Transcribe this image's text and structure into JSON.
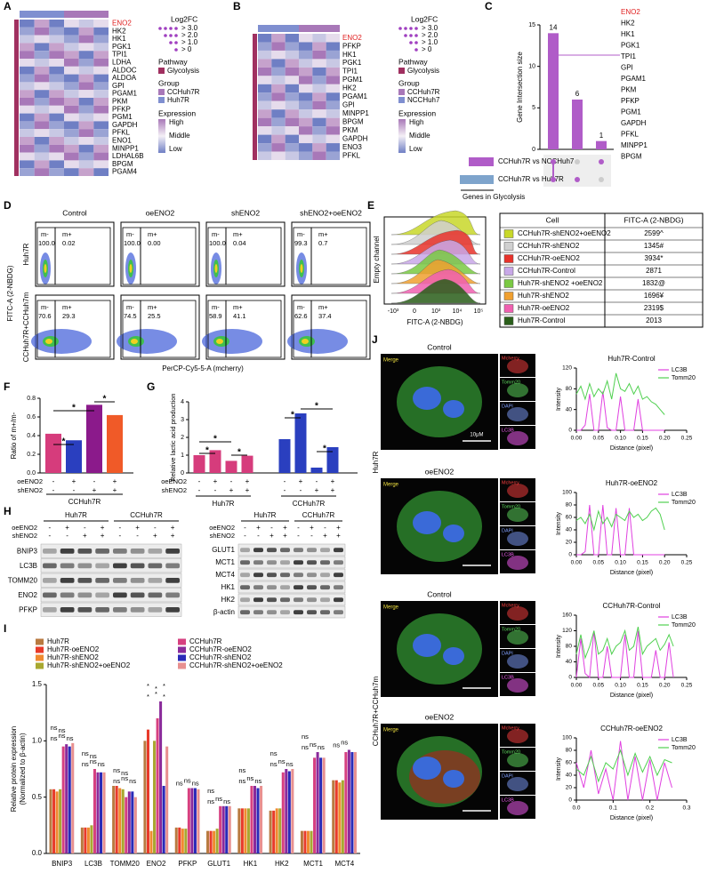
{
  "panels": {
    "A": {
      "label": "A",
      "genes": [
        "ENO2",
        "HK2",
        "HK1",
        "PGK1",
        "TPI1",
        "LDHA",
        "ALDOC",
        "ALDOA",
        "GPI",
        "PGAM1",
        "PKM",
        "PFKP",
        "PGM1",
        "GAPDH",
        "PFKL",
        "ENO1",
        "MINPP1",
        "LDHAL6B",
        "BPGM",
        "PGAM4"
      ],
      "legend": {
        "fc_title": "Log2FC",
        "fc": [
          "> 3.0",
          "> 2.0",
          "> 1.0",
          "> 0"
        ],
        "pathway_title": "Pathway",
        "pathway": "Glycolysis",
        "group_title": "Group",
        "groups": [
          "CCHuh7R",
          "Huh7R"
        ],
        "expr_title": "Expression",
        "expr": [
          "High",
          "Middle",
          "Low"
        ]
      }
    },
    "B": {
      "label": "B",
      "genes": [
        "ENO2",
        "PFKP",
        "HK1",
        "PGK1",
        "TPI1",
        "PGM1",
        "HK2",
        "PGAM1",
        "GPI",
        "MINPP1",
        "BPGM",
        "PKM",
        "GAPDH",
        "ENO3",
        "PFKL"
      ],
      "legend": {
        "fc_title": "Log2FC",
        "fc": [
          "> 3.0",
          "> 2.0",
          "> 1.0",
          "> 0"
        ],
        "pathway_title": "Pathway",
        "pathway": "Glycolysis",
        "group_title": "Group",
        "groups": [
          "CCHuh7R",
          "NCCHuh7"
        ],
        "expr_title": "Expression",
        "expr": [
          "High",
          "Middle",
          "Low"
        ]
      }
    },
    "D": {
      "label": "D",
      "columns": [
        "Control",
        "oeENO2",
        "shENO2",
        "shENO2+oeENO2"
      ],
      "rows": [
        "Huh7R",
        "CCHuh7R+CCHuh7m"
      ],
      "ylabel": "FITC-A (2-NBDG)",
      "xlabel": "PerCP-Cy5-5-A (mcherry)",
      "gates": [
        "m-",
        "m+"
      ],
      "percent": [
        [
          [
            "100.0",
            "0.02"
          ],
          [
            "100.0",
            "0.00"
          ],
          [
            "100.0",
            "0.04"
          ],
          [
            "99.3",
            "0.7"
          ]
        ],
        [
          [
            "70.6",
            "29.3"
          ],
          [
            "74.5",
            "25.5"
          ],
          [
            "58.9",
            "41.1"
          ],
          [
            "62.6",
            "37.4"
          ]
        ]
      ]
    },
    "E": {
      "label": "E",
      "ylabel": "Empty channel",
      "xlabel": "FITC-A (2-NBDG)",
      "xticks": [
        "-10³",
        "0",
        "10³",
        "10⁴",
        "10⁵"
      ],
      "table": {
        "header": [
          "Cell",
          "FITC-A (2-NBDG)"
        ],
        "rows": [
          [
            "CCHuh7R-shENO2+oeENO2",
            "2599^"
          ],
          [
            "CCHuh7R-shENO2",
            "1345#"
          ],
          [
            "CCHuh7R-oeENO2",
            "3934*"
          ],
          [
            "CCHuh7R-Control",
            "2871"
          ],
          [
            "Huh7R-shENO2 +oeENO2",
            "1832@"
          ],
          [
            "Huh7R-shENO2",
            "1696¥"
          ],
          [
            "Huh7R-oeENO2",
            "2319$"
          ],
          [
            "Huh7R-Control",
            "2013"
          ]
        ],
        "colors": [
          "#c8d82a",
          "#d0d0d0",
          "#e8322a",
          "#c8a8e8",
          "#7ac943",
          "#f0a030",
          "#f060b0",
          "#2a5e1a"
        ]
      }
    },
    "H": {
      "label": "H",
      "groups": [
        "Huh7R",
        "CCHuh7R"
      ],
      "rows": [
        "oeENO2",
        "shENO2"
      ],
      "signs": [
        [
          "-",
          "+",
          "-",
          "+",
          "-",
          "+",
          "-",
          "+"
        ],
        [
          "-",
          "-",
          "+",
          "+",
          "-",
          "-",
          "+",
          "+"
        ]
      ],
      "left": [
        "BNIP3",
        "LC3B",
        "TOMM20",
        "ENO2",
        "PFKP"
      ],
      "right": [
        "GLUT1",
        "MCT1",
        "MCT4",
        "HK1",
        "HK2",
        "β-actin"
      ]
    },
    "J": {
      "label": "J",
      "columns": [
        "Control",
        "oeENO2",
        "Control",
        "oeENO2"
      ],
      "rows": [
        "Huh7R",
        "CCHuh7R+CCHuh7m"
      ],
      "channels": [
        "Merge",
        "Mcherry",
        "Tomm20",
        "DAPI",
        "LC3B"
      ],
      "scale": "10μM"
    }
  },
  "chart_data": [
    {
      "type": "bar",
      "label": "C",
      "ylabel": "Gene Intersection size",
      "values": [
        14,
        6,
        1
      ],
      "color": "#b05cc8",
      "ylim": [
        0,
        15
      ],
      "yticks": [
        0,
        5,
        10,
        15
      ],
      "sets": [
        "CCHuh7R vs NCCHuh7",
        "CCHuh7R vs Huh7R"
      ],
      "set_colors": [
        "#b05cc8",
        "#7ea4cc"
      ],
      "set_axis": "Genes in Glycolysis",
      "genes": [
        "ENO2",
        "HK2",
        "HK1",
        "PGK1",
        "TPI1",
        "GPI",
        "PGAM1",
        "PKM",
        "PFKP",
        "PGM1",
        "GAPDH",
        "PFKL",
        "MINPP1",
        "BPGM"
      ]
    },
    {
      "type": "bar",
      "label": "F",
      "ylabel": "Ratio of m+/m-",
      "values": [
        0.42,
        0.35,
        0.73,
        0.62
      ],
      "colors": [
        "#d63c7c",
        "#2a3fbf",
        "#8b1a8b",
        "#f05a28"
      ],
      "ylim": [
        0,
        0.8
      ],
      "yticks": [
        {
          "value": 0,
          "label": "0.0"
        },
        0.2,
        0.4,
        0.6,
        0.8
      ],
      "rows": [
        {
          "name": "oeENO2",
          "signs": [
            "-",
            "+",
            "-",
            "+"
          ]
        },
        {
          "name": "shENO2",
          "signs": [
            "-",
            "-",
            "+",
            "+"
          ]
        }
      ],
      "group": "CCHuh7R",
      "annotations": [
        "*",
        "*",
        "*"
      ]
    },
    {
      "type": "bar",
      "label": "G",
      "ylabel": "Relative lactic acid production",
      "groups": [
        {
          "name": "Huh7R",
          "color": "#d63c7c",
          "values": [
            1.0,
            1.28,
            0.68,
            0.97
          ]
        },
        {
          "name": "CCHuh7R",
          "color": "#2a3fbf",
          "values": [
            1.9,
            3.35,
            0.3,
            1.45
          ]
        }
      ],
      "ylim": [
        0,
        4
      ],
      "yticks": [
        0,
        1,
        2,
        3,
        4
      ],
      "rows": [
        {
          "name": "oeENO2",
          "signs": [
            "-",
            "+",
            "-",
            "+",
            "-",
            "+",
            "-",
            "+"
          ]
        },
        {
          "name": "shENO2",
          "signs": [
            "-",
            "-",
            "+",
            "+",
            "-",
            "-",
            "+",
            "+"
          ]
        }
      ],
      "annotations": [
        "*",
        "*",
        "*",
        "*",
        "*",
        "*"
      ]
    },
    {
      "type": "bar",
      "label": "I",
      "ylabel": [
        "Relative protein expression",
        "(Normalized to β-actin)"
      ],
      "categories": [
        "BNIP3",
        "LC3B",
        "TOMM20",
        "ENO2",
        "PFKP",
        "GLUT1",
        "HK1",
        "HK2",
        "MCT1",
        "MCT4"
      ],
      "ylim": [
        0,
        1.5
      ],
      "yticks": [
        {
          "value": 0,
          "label": "0.0"
        },
        0.5,
        {
          "value": 1,
          "label": "1.0"
        },
        1.5
      ],
      "series": [
        {
          "name": "Huh7R",
          "color": "#b87a40",
          "values": [
            0.57,
            0.23,
            0.6,
            1.0,
            0.23,
            0.2,
            0.4,
            0.38,
            0.2,
            0.65
          ]
        },
        {
          "name": "Huh7R-oeENO2",
          "color": "#e83a2a",
          "values": [
            0.57,
            0.23,
            0.6,
            1.1,
            0.23,
            0.2,
            0.4,
            0.38,
            0.2,
            0.65
          ]
        },
        {
          "name": "Huh7R-shENO2",
          "color": "#f08a30",
          "values": [
            0.55,
            0.23,
            0.58,
            0.2,
            0.22,
            0.2,
            0.4,
            0.4,
            0.2,
            0.63
          ]
        },
        {
          "name": "Huh7R-shENO2+oeENO2",
          "color": "#a8a830",
          "values": [
            0.57,
            0.25,
            0.57,
            1.0,
            0.22,
            0.22,
            0.4,
            0.4,
            0.2,
            0.65
          ]
        },
        {
          "name": "CCHuh7R",
          "color": "#d64080",
          "values": [
            0.95,
            0.75,
            0.5,
            1.2,
            0.58,
            0.42,
            0.6,
            0.72,
            0.85,
            0.9
          ]
        },
        {
          "name": "CCHuh7R-oeENO2",
          "color": "#8a2a9a",
          "values": [
            0.97,
            0.72,
            0.55,
            1.35,
            0.58,
            0.42,
            0.6,
            0.75,
            0.9,
            0.92
          ]
        },
        {
          "name": "CCHuh7R-shENO2",
          "color": "#2a2ab8",
          "values": [
            0.95,
            0.72,
            0.55,
            0.6,
            0.58,
            0.42,
            0.58,
            0.73,
            0.85,
            0.9
          ]
        },
        {
          "name": "CCHuh7R-shENO2+oeENO2",
          "color": "#e89090",
          "values": [
            0.98,
            0.72,
            0.5,
            0.95,
            0.57,
            0.42,
            0.6,
            0.75,
            0.85,
            0.9
          ]
        }
      ],
      "marks": [
        [
          "ns",
          "ns",
          "ns",
          "ns",
          "ns"
        ],
        [
          "ns",
          "ns",
          "ns",
          "ns",
          "ns"
        ],
        [
          "ns",
          "ns",
          "ns",
          "ns",
          "ns"
        ],
        [
          "*",
          "*",
          "*",
          "*",
          "*",
          "*"
        ],
        [
          "ns",
          "ns",
          "ns"
        ],
        [
          "ns",
          "ns",
          "ns",
          "ns"
        ],
        [
          "ns",
          "ns",
          "ns",
          "ns"
        ],
        [
          "ns",
          "ns",
          "ns",
          "ns"
        ],
        [
          "ns",
          "ns",
          "ns",
          "ns"
        ],
        [
          "ns",
          "ns"
        ]
      ]
    },
    {
      "type": "line",
      "title": "Huh7R-Control",
      "xlabel": "Distance (pixel)",
      "ylabel": "Intensity",
      "x": [
        0,
        0.01,
        0.02,
        0.03,
        0.04,
        0.05,
        0.06,
        0.07,
        0.08,
        0.09,
        0.1,
        0.11,
        0.12,
        0.13,
        0.14,
        0.15,
        0.16,
        0.17,
        0.18,
        0.19,
        0.2
      ],
      "xlim": [
        0,
        0.25
      ],
      "xticks": [
        {
          "value": 0,
          "label": "0.00"
        },
        0.05,
        {
          "value": 0.1,
          "label": "0.10"
        },
        0.15,
        {
          "value": 0.2,
          "label": "0.20"
        },
        0.25
      ],
      "ylim": [
        0,
        120
      ],
      "yticks": [
        0,
        40,
        80,
        120
      ],
      "series": [
        {
          "name": "LC3B",
          "color": "#e040e0",
          "values": [
            0,
            0,
            10,
            70,
            0,
            0,
            75,
            5,
            0,
            0,
            65,
            0,
            0,
            0,
            60,
            0,
            0,
            0,
            0,
            0,
            0
          ]
        },
        {
          "name": "Tomm20",
          "color": "#50d050",
          "values": [
            70,
            85,
            60,
            90,
            65,
            80,
            70,
            95,
            60,
            110,
            80,
            75,
            90,
            70,
            85,
            60,
            65,
            55,
            50,
            40,
            30
          ]
        }
      ]
    },
    {
      "type": "line",
      "title": "Huh7R-oeENO2",
      "xlabel": "Distance (pixel)",
      "ylabel": "Intensity",
      "x": [
        0,
        0.01,
        0.02,
        0.03,
        0.04,
        0.05,
        0.06,
        0.07,
        0.08,
        0.09,
        0.1,
        0.11,
        0.12,
        0.13,
        0.14,
        0.15,
        0.16,
        0.17,
        0.18,
        0.19,
        0.2
      ],
      "xlim": [
        0,
        0.25
      ],
      "xticks": [
        {
          "value": 0,
          "label": "0.00"
        },
        0.05,
        {
          "value": 0.1,
          "label": "0.10"
        },
        0.15,
        {
          "value": 0.2,
          "label": "0.20"
        },
        0.25
      ],
      "ylim": [
        0,
        100
      ],
      "yticks": [
        0,
        20,
        40,
        60,
        80,
        100
      ],
      "series": [
        {
          "name": "LC3B",
          "color": "#e040e0",
          "values": [
            0,
            0,
            5,
            80,
            0,
            0,
            80,
            0,
            0,
            75,
            0,
            0,
            75,
            0,
            0,
            0,
            0,
            0,
            0,
            0,
            0
          ]
        },
        {
          "name": "Tomm20",
          "color": "#50d050",
          "values": [
            55,
            60,
            50,
            65,
            40,
            70,
            50,
            60,
            45,
            65,
            60,
            55,
            70,
            60,
            65,
            55,
            60,
            70,
            75,
            65,
            40
          ]
        }
      ]
    },
    {
      "type": "line",
      "title": "CCHuh7R-Control",
      "xlabel": "Distance (pixel)",
      "ylabel": "Intensity",
      "x": [
        0,
        0.01,
        0.02,
        0.03,
        0.04,
        0.05,
        0.06,
        0.07,
        0.08,
        0.09,
        0.1,
        0.11,
        0.12,
        0.13,
        0.14,
        0.15,
        0.16,
        0.17,
        0.18,
        0.19,
        0.2,
        0.21,
        0.22
      ],
      "xlim": [
        0,
        0.25
      ],
      "xticks": [
        {
          "value": 0,
          "label": "0.00"
        },
        0.05,
        {
          "value": 0.1,
          "label": "0.10"
        },
        0.15,
        {
          "value": 0.2,
          "label": "0.20"
        },
        0.25
      ],
      "ylim": [
        0,
        160
      ],
      "yticks": [
        0,
        40,
        80,
        120,
        160
      ],
      "series": [
        {
          "name": "LC3B",
          "color": "#e040e0",
          "values": [
            0,
            100,
            10,
            0,
            120,
            0,
            0,
            80,
            0,
            0,
            0,
            110,
            0,
            0,
            120,
            0,
            0,
            0,
            70,
            0,
            0,
            90,
            0
          ]
        },
        {
          "name": "Tomm20",
          "color": "#50d050",
          "values": [
            60,
            110,
            50,
            80,
            120,
            60,
            70,
            100,
            60,
            80,
            90,
            120,
            70,
            80,
            130,
            60,
            80,
            90,
            100,
            70,
            85,
            110,
            80
          ]
        }
      ]
    },
    {
      "type": "line",
      "title": "CCHuh7R-oeENO2",
      "xlabel": "Distance (pixel)",
      "ylabel": "Intensity",
      "x": [
        0,
        0.02,
        0.04,
        0.06,
        0.08,
        0.1,
        0.12,
        0.14,
        0.16,
        0.18,
        0.2,
        0.22,
        0.24,
        0.26
      ],
      "xlim": [
        0,
        0.3
      ],
      "xticks": [
        {
          "value": 0,
          "label": "0.0"
        },
        0.1,
        0.2,
        0.3
      ],
      "ylim": [
        0,
        100
      ],
      "yticks": [
        0,
        20,
        40,
        60,
        80,
        100
      ],
      "series": [
        {
          "name": "LC3B",
          "color": "#e040e0",
          "values": [
            60,
            20,
            80,
            10,
            50,
            0,
            95,
            0,
            70,
            0,
            65,
            0,
            60,
            20
          ]
        },
        {
          "name": "Tomm20",
          "color": "#50d050",
          "values": [
            50,
            40,
            70,
            30,
            60,
            50,
            80,
            40,
            75,
            45,
            70,
            40,
            65,
            60
          ]
        }
      ]
    }
  ]
}
